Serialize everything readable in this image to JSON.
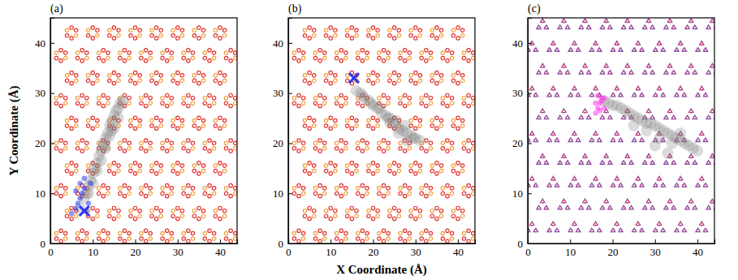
{
  "chart_data": [
    {
      "type": "scatter",
      "title": "(a)",
      "ylabel": "Y Coordinate (Å)",
      "xlim": [
        0,
        44
      ],
      "ylim": [
        0,
        45
      ],
      "xticks": [
        0,
        10,
        20,
        30,
        40
      ],
      "yticks": [
        0,
        10,
        20,
        30,
        40
      ],
      "series": [
        {
          "marker": "ring",
          "color": "#e3342f",
          "x": [
            2.5,
            7.5,
            12.5,
            17.5,
            22.5,
            27.5,
            32.5,
            37.5,
            42.5,
            5,
            10,
            15,
            20,
            25,
            30,
            35,
            40,
            2.5,
            7.5,
            12.5,
            17.5,
            22.5,
            27.5,
            32.5,
            37.5,
            42.5,
            5,
            10,
            15,
            20,
            25,
            30,
            35,
            40,
            2.5,
            7.5,
            12.5,
            17.5,
            22.5,
            27.5,
            32.5,
            37.5,
            42.5,
            5,
            10,
            15,
            20,
            25,
            30,
            35,
            40,
            2.5,
            7.5,
            12.5,
            17.5,
            22.5,
            27.5,
            32.5,
            37.5,
            42.5,
            5,
            10,
            15,
            20,
            25,
            30,
            35,
            40,
            2.5,
            7.5,
            12.5,
            17.5,
            22.5,
            27.5,
            32.5,
            37.5,
            42.5,
            5,
            10,
            15,
            20,
            25,
            30,
            35,
            40
          ],
          "values": [
            1.5,
            1.5,
            1.5,
            1.5,
            1.5,
            1.5,
            1.5,
            1.5,
            1.5,
            6,
            6,
            6,
            6,
            6,
            6,
            6,
            6,
            10.5,
            10.5,
            10.5,
            10.5,
            10.5,
            10.5,
            10.5,
            10.5,
            10.5,
            15,
            15,
            15,
            15,
            15,
            15,
            15,
            15,
            19.5,
            19.5,
            19.5,
            19.5,
            19.5,
            19.5,
            19.5,
            19.5,
            19.5,
            24,
            24,
            24,
            24,
            24,
            24,
            24,
            24,
            28.5,
            28.5,
            28.5,
            28.5,
            28.5,
            28.5,
            28.5,
            28.5,
            28.5,
            33,
            33,
            33,
            33,
            33,
            33,
            33,
            33,
            37.5,
            37.5,
            37.5,
            37.5,
            37.5,
            37.5,
            37.5,
            37.5,
            37.5,
            42,
            42,
            42,
            42,
            42,
            42,
            42,
            42
          ]
        },
        {
          "marker": "cloud",
          "color": "#7f7f7f",
          "x": [
            7,
            8,
            8.5,
            9,
            9.5,
            10,
            10.5,
            11,
            11.5,
            12,
            12.5,
            13,
            13.5,
            14,
            14.5,
            15,
            15.5,
            16,
            16.5,
            17,
            9,
            10,
            11,
            12,
            13,
            14,
            15,
            16,
            12.5,
            14.5
          ],
          "values": [
            7,
            9,
            10,
            11.5,
            12.5,
            14,
            15,
            16,
            17.5,
            18.5,
            20,
            21,
            22,
            23.5,
            24.5,
            25.5,
            26.5,
            27,
            28,
            28.5,
            10,
            12,
            14.5,
            16.5,
            19,
            21.5,
            23,
            25,
            19.5,
            22.5
          ]
        },
        {
          "marker": "dot",
          "color": "#2a3cf0",
          "x": [
            5,
            6,
            6.5,
            7,
            7.5,
            8,
            8.5,
            9,
            6,
            7,
            8,
            9.5
          ],
          "values": [
            6,
            7,
            8,
            9,
            10,
            11,
            6.5,
            8,
            10.5,
            12,
            13,
            12
          ]
        },
        {
          "marker": "cross",
          "color": "#2a3cf0",
          "x": [
            8
          ],
          "values": [
            6.5
          ]
        }
      ]
    },
    {
      "type": "scatter",
      "title": "(b)",
      "xlabel": "X Coordinate (Å)",
      "xlim": [
        0,
        44
      ],
      "ylim": [
        0,
        45
      ],
      "xticks": [
        0,
        10,
        20,
        30,
        40
      ],
      "yticks": [
        0,
        10,
        20,
        30,
        40
      ],
      "series": [
        {
          "marker": "ring",
          "color": "#e3342f",
          "x": [
            2.5,
            7.5,
            12.5,
            17.5,
            22.5,
            27.5,
            32.5,
            37.5,
            42.5,
            5,
            10,
            15,
            20,
            25,
            30,
            35,
            40,
            2.5,
            7.5,
            12.5,
            17.5,
            22.5,
            27.5,
            32.5,
            37.5,
            42.5,
            5,
            10,
            15,
            20,
            25,
            30,
            35,
            40,
            2.5,
            7.5,
            12.5,
            17.5,
            22.5,
            27.5,
            32.5,
            37.5,
            42.5,
            5,
            10,
            15,
            20,
            25,
            30,
            35,
            40,
            2.5,
            7.5,
            12.5,
            17.5,
            22.5,
            27.5,
            32.5,
            37.5,
            42.5,
            5,
            10,
            15,
            20,
            25,
            30,
            35,
            40,
            2.5,
            7.5,
            12.5,
            17.5,
            22.5,
            27.5,
            32.5,
            37.5,
            42.5,
            5,
            10,
            15,
            20,
            25,
            30,
            35,
            40
          ],
          "values": [
            1.5,
            1.5,
            1.5,
            1.5,
            1.5,
            1.5,
            1.5,
            1.5,
            1.5,
            6,
            6,
            6,
            6,
            6,
            6,
            6,
            6,
            10.5,
            10.5,
            10.5,
            10.5,
            10.5,
            10.5,
            10.5,
            10.5,
            10.5,
            15,
            15,
            15,
            15,
            15,
            15,
            15,
            15,
            19.5,
            19.5,
            19.5,
            19.5,
            19.5,
            19.5,
            19.5,
            19.5,
            19.5,
            24,
            24,
            24,
            24,
            24,
            24,
            24,
            24,
            28.5,
            28.5,
            28.5,
            28.5,
            28.5,
            28.5,
            28.5,
            28.5,
            28.5,
            33,
            33,
            33,
            33,
            33,
            33,
            33,
            33,
            37.5,
            37.5,
            37.5,
            37.5,
            37.5,
            37.5,
            37.5,
            37.5,
            37.5,
            42,
            42,
            42,
            42,
            42,
            42,
            42,
            42
          ]
        },
        {
          "marker": "cloud",
          "color": "#7f7f7f",
          "x": [
            16,
            17,
            18,
            19,
            20,
            21,
            22,
            23,
            24,
            25,
            26,
            27,
            28,
            29,
            30,
            31,
            17.5,
            19.5,
            21.5,
            23.5,
            25.5,
            27.5,
            29.5,
            24,
            26,
            28
          ],
          "values": [
            30.5,
            30,
            29,
            28.5,
            27.5,
            27,
            26,
            25.5,
            25,
            24,
            23,
            22.5,
            22,
            21.5,
            21,
            20.5,
            29.5,
            28,
            27,
            25,
            24.5,
            23.5,
            21,
            24,
            22,
            20.5
          ]
        },
        {
          "marker": "cross",
          "color": "#2a3cf0",
          "x": [
            15.5
          ],
          "values": [
            33
          ]
        }
      ]
    },
    {
      "type": "scatter",
      "title": "(c)",
      "xlim": [
        0,
        44
      ],
      "ylim": [
        0,
        45
      ],
      "xticks": [
        0,
        10,
        20,
        30,
        40
      ],
      "yticks": [
        0,
        10,
        20,
        30,
        40
      ],
      "series": [
        {
          "marker": "trimer",
          "color": "#8a4fa8",
          "x": [
            1,
            6,
            11,
            16,
            21,
            26,
            31,
            36,
            41,
            3.5,
            8.5,
            13.5,
            18.5,
            23.5,
            28.5,
            33.5,
            38.5,
            43.5,
            1,
            6,
            11,
            16,
            21,
            26,
            31,
            36,
            41,
            3.5,
            8.5,
            13.5,
            18.5,
            23.5,
            28.5,
            33.5,
            38.5,
            43.5,
            1,
            6,
            11,
            16,
            21,
            26,
            31,
            36,
            41,
            3.5,
            8.5,
            13.5,
            18.5,
            23.5,
            28.5,
            33.5,
            38.5,
            43.5,
            1,
            6,
            11,
            16,
            21,
            26,
            31,
            36,
            41,
            3.5,
            8.5,
            13.5,
            18.5,
            23.5,
            28.5,
            33.5,
            38.5,
            43.5,
            1,
            6,
            11,
            16,
            21,
            26,
            31,
            36,
            41,
            3.5,
            8.5,
            13.5,
            18.5,
            23.5,
            28.5,
            33.5,
            38.5,
            43.5
          ],
          "values": [
            3,
            3,
            3,
            3,
            3,
            3,
            3,
            3,
            3,
            7.5,
            7.5,
            7.5,
            7.5,
            7.5,
            7.5,
            7.5,
            7.5,
            7.5,
            12,
            12,
            12,
            12,
            12,
            12,
            12,
            12,
            12,
            16.5,
            16.5,
            16.5,
            16.5,
            16.5,
            16.5,
            16.5,
            16.5,
            16.5,
            21,
            21,
            21,
            21,
            21,
            21,
            21,
            21,
            21,
            25.5,
            25.5,
            25.5,
            25.5,
            25.5,
            25.5,
            25.5,
            25.5,
            25.5,
            30,
            30,
            30,
            30,
            30,
            30,
            30,
            30,
            30,
            34.5,
            34.5,
            34.5,
            34.5,
            34.5,
            34.5,
            34.5,
            34.5,
            34.5,
            39,
            39,
            39,
            39,
            39,
            39,
            39,
            39,
            39,
            43.5,
            43.5,
            43.5,
            43.5,
            43.5,
            43.5,
            43.5,
            43.5,
            43.5
          ]
        },
        {
          "marker": "cloud",
          "color": "#7f7f7f",
          "x": [
            18,
            19,
            20,
            21,
            22,
            23,
            24,
            25,
            26,
            27,
            28,
            29,
            30,
            31,
            32,
            33,
            34,
            35,
            36,
            37,
            38,
            39,
            40,
            25,
            28,
            31,
            34,
            33,
            36,
            30
          ],
          "values": [
            28.5,
            28,
            27.5,
            27.5,
            27,
            26.5,
            26,
            25.5,
            25,
            24.5,
            24,
            24,
            23.5,
            23,
            22.5,
            22,
            21.5,
            21,
            20.5,
            20,
            19.5,
            19,
            18.5,
            23.5,
            22.5,
            21,
            20,
            18,
            22,
            19.5
          ]
        },
        {
          "marker": "dot",
          "color": "#ff33ee",
          "x": [
            16,
            16.5,
            17,
            17.5,
            18,
            16.5,
            17,
            17.5,
            16,
            18
          ],
          "values": [
            26,
            27,
            28,
            29,
            27,
            29.5,
            26.5,
            28.5,
            28,
            29
          ]
        }
      ]
    }
  ]
}
